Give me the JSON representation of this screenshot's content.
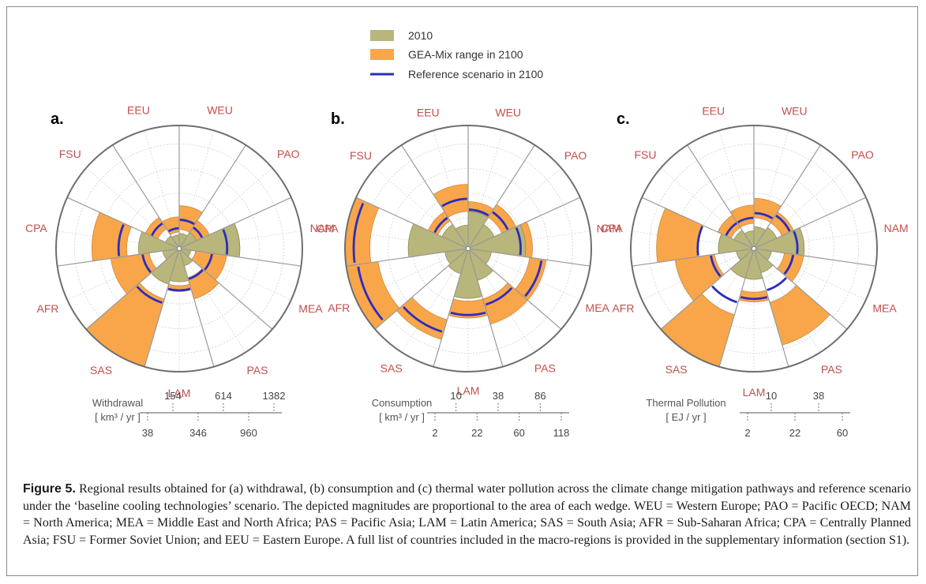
{
  "legend": {
    "items": [
      {
        "label": "2010",
        "color": "#b8b67a"
      },
      {
        "label": "GEA-Mix range in 2100",
        "color": "#f9a64a"
      },
      {
        "label": "Reference scenario in 2100",
        "color": "#2a2dbf"
      }
    ]
  },
  "colors": {
    "region_label": "#c0504d",
    "baseline_fill": "#b8b67a",
    "range_fill": "#f9a64a",
    "reference_line": "#2a2dbf"
  },
  "chart_data": [
    {
      "type": "polar-area",
      "panel_label": "a.",
      "regions": [
        "WEU",
        "PAO",
        "NAM",
        "MEA",
        "PAS",
        "LAM",
        "SAS",
        "AFR",
        "CPA",
        "FSU",
        "EEU"
      ],
      "baseline_2010": [
        25,
        40,
        400,
        15,
        35,
        120,
        150,
        30,
        180,
        25,
        20
      ],
      "gea_mix_range_2100": [
        [
          40,
          200
        ],
        [
          40,
          120
        ],
        [
          150,
          400
        ],
        [
          30,
          250
        ],
        [
          100,
          300
        ],
        [
          150,
          200
        ],
        [
          300,
          1650
        ],
        [
          100,
          520
        ],
        [
          300,
          830
        ],
        [
          60,
          150
        ],
        [
          30,
          110
        ]
      ],
      "reference_2100": [
        90,
        70,
        250,
        120,
        110,
        190,
        350,
        150,
        400,
        100,
        45
      ],
      "scale": {
        "title": "Withdrawal",
        "units": "[ km³ / yr ]",
        "upper_ticks": [
          "154",
          "614",
          "1382"
        ],
        "lower_ticks": [
          "38",
          "346",
          "960"
        ]
      }
    },
    {
      "type": "polar-area",
      "panel_label": "b.",
      "regions": [
        "WEU",
        "PAO",
        "NAM",
        "MEA",
        "PAS",
        "LAM",
        "SAS",
        "AFR",
        "CPA",
        "FSU",
        "EEU"
      ],
      "baseline_2010": [
        10,
        6,
        24,
        4,
        8,
        18,
        5,
        4,
        26,
        6,
        4
      ],
      "gea_mix_range_2100": [
        [
          8,
          16
        ],
        [
          10,
          20
        ],
        [
          14,
          30
        ],
        [
          28,
          45
        ],
        [
          20,
          45
        ],
        [
          20,
          35
        ],
        [
          40,
          65
        ],
        [
          60,
          110
        ],
        [
          70,
          110
        ],
        [
          8,
          14
        ],
        [
          10,
          30
        ]
      ],
      "reference_2100": [
        11,
        14,
        20,
        40,
        25,
        32,
        55,
        90,
        95,
        10,
        18
      ],
      "scale": {
        "title": "Consumption",
        "units": "[ km³ / yr ]",
        "upper_ticks": [
          "10",
          "38",
          "86"
        ],
        "lower_ticks": [
          "2",
          "22",
          "60",
          "118"
        ]
      }
    },
    {
      "type": "polar-area",
      "panel_label": "c.",
      "regions": [
        "WEU",
        "PAO",
        "NAM",
        "MEA",
        "PAS",
        "LAM",
        "SAS",
        "AFR",
        "CPA",
        "FSU",
        "EEU"
      ],
      "baseline_2010": [
        1.5,
        2,
        8,
        1,
        2,
        3,
        3,
        1,
        4,
        1.5,
        1
      ],
      "gea_mix_range_2100": [
        [
          3,
          8
        ],
        [
          3,
          6
        ],
        [
          6,
          8
        ],
        [
          3,
          8
        ],
        [
          10,
          32
        ],
        [
          6,
          9
        ],
        [
          15,
          48
        ],
        [
          5,
          20
        ],
        [
          10,
          30
        ],
        [
          2,
          5
        ],
        [
          2,
          6
        ]
      ],
      "reference_2100": [
        4,
        5,
        6,
        5,
        6,
        8,
        10,
        6,
        10,
        3,
        3
      ],
      "scale": {
        "title": "Thermal Pollution",
        "units": "[ EJ / yr ]",
        "upper_ticks": [
          "10",
          "38"
        ],
        "lower_ticks": [
          "2",
          "22",
          "60"
        ]
      }
    }
  ],
  "caption": {
    "label": "Figure 5.",
    "text": " Regional results obtained for (a) withdrawal, (b) consumption and (c) thermal water pollution across the climate change mitigation pathways and reference scenario under the ‘baseline cooling technologies’ scenario. The depicted magnitudes are proportional to the area of each wedge. WEU = Western Europe; PAO = Pacific OECD; NAM = North America; MEA = Middle East and North Africa; PAS = Pacific Asia; LAM = Latin America; SAS = South Asia; AFR = Sub-Saharan Africa; CPA = Centrally Planned Asia; FSU = Former Soviet Union; and EEU = Eastern Europe. A full list of countries included in the macro-regions is provided in the supplementary information (section S1)."
  }
}
